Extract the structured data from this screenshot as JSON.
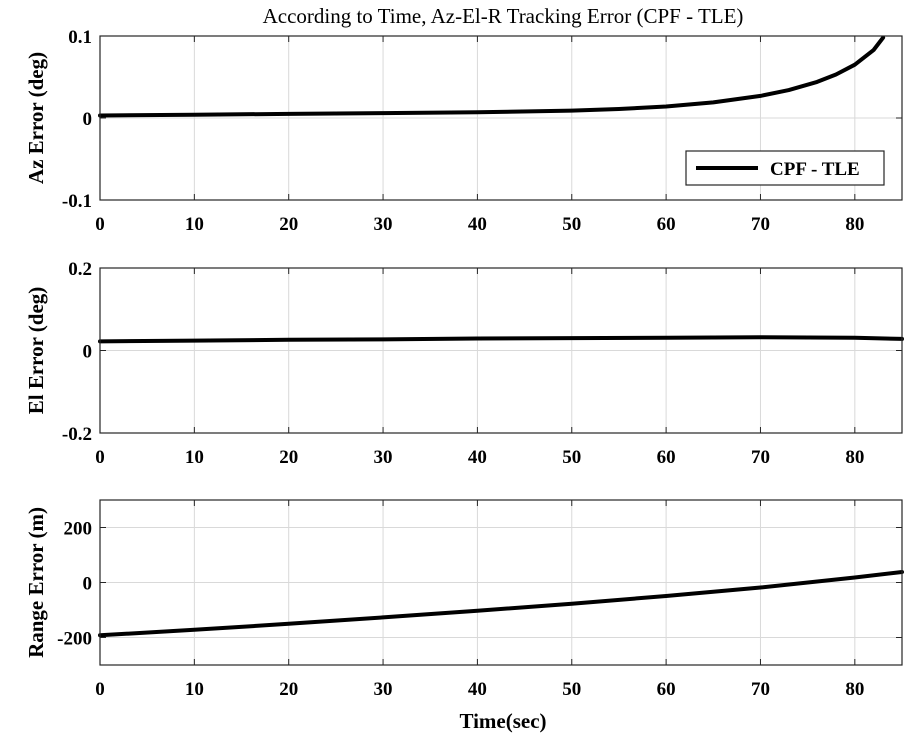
{
  "title": "According to Time, Az-El-R Tracking Error (CPF - TLE)",
  "xlabel": "Time(sec)",
  "chart_data": [
    {
      "type": "line",
      "ylabel": "Az Error (deg)",
      "xlim": [
        0,
        85
      ],
      "ylim": [
        -0.1,
        0.1
      ],
      "xticks": [
        0,
        10,
        20,
        30,
        40,
        50,
        60,
        70,
        80
      ],
      "yticks": [
        -0.1,
        0,
        0.1
      ],
      "ytick_labels": [
        "-0.1",
        "0",
        "0.1"
      ],
      "grid": true,
      "legend": {
        "placement": "lower-right",
        "entries": [
          "CPF - TLE"
        ]
      },
      "series": [
        {
          "name": "CPF - TLE",
          "x": [
            0,
            10,
            20,
            30,
            40,
            50,
            55,
            60,
            65,
            70,
            73,
            76,
            78,
            80,
            82,
            83
          ],
          "y": [
            0.003,
            0.004,
            0.005,
            0.006,
            0.007,
            0.009,
            0.011,
            0.014,
            0.019,
            0.027,
            0.034,
            0.044,
            0.053,
            0.065,
            0.083,
            0.098
          ]
        }
      ]
    },
    {
      "type": "line",
      "ylabel": "El Error (deg)",
      "xlim": [
        0,
        85
      ],
      "ylim": [
        -0.2,
        0.2
      ],
      "xticks": [
        0,
        10,
        20,
        30,
        40,
        50,
        60,
        70,
        80
      ],
      "yticks": [
        -0.2,
        0,
        0.2
      ],
      "ytick_labels": [
        "-0.2",
        "0",
        "0.2"
      ],
      "grid": true,
      "series": [
        {
          "name": "CPF - TLE",
          "x": [
            0,
            10,
            20,
            30,
            40,
            50,
            60,
            70,
            80,
            85
          ],
          "y": [
            0.022,
            0.024,
            0.026,
            0.027,
            0.029,
            0.03,
            0.031,
            0.032,
            0.031,
            0.028
          ]
        }
      ]
    },
    {
      "type": "line",
      "ylabel": "Range Error (m)",
      "xlim": [
        0,
        85
      ],
      "ylim": [
        -300,
        300
      ],
      "xticks": [
        0,
        10,
        20,
        30,
        40,
        50,
        60,
        70,
        80
      ],
      "yticks": [
        -200,
        0,
        200
      ],
      "ytick_labels": [
        "-200",
        "0",
        "200"
      ],
      "grid": true,
      "series": [
        {
          "name": "CPF - TLE",
          "x": [
            0,
            10,
            20,
            30,
            40,
            50,
            60,
            70,
            80,
            85
          ],
          "y": [
            -192,
            -172,
            -150,
            -127,
            -103,
            -77,
            -49,
            -18,
            18,
            38
          ]
        }
      ]
    }
  ]
}
